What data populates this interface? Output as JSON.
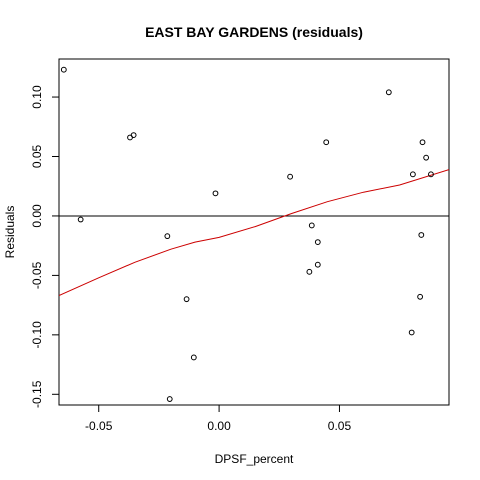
{
  "chart_data": {
    "type": "scatter",
    "title": "EAST BAY GARDENS (residuals)",
    "xlabel": "DPSF_percent",
    "ylabel": "Residuals",
    "xlim": [
      -0.0665,
      0.0955
    ],
    "ylim": [
      -0.159,
      0.132
    ],
    "x_ticks": [
      -0.05,
      0.0,
      0.05
    ],
    "x_tick_labels": [
      "-0.05",
      "0.00",
      "0.05"
    ],
    "y_ticks": [
      -0.15,
      -0.1,
      -0.05,
      0.0,
      0.05,
      0.1
    ],
    "y_tick_labels": [
      "-0.15",
      "-0.10",
      "-0.05",
      "0.00",
      "0.05",
      "0.10"
    ],
    "grid": false,
    "reference_line_y": 0.0,
    "colors": {
      "points": "#000000",
      "smooth": "#cc0000",
      "axes": "#000000"
    },
    "points": [
      {
        "x": -0.0645,
        "y": 0.123
      },
      {
        "x": -0.0575,
        "y": -0.003
      },
      {
        "x": -0.037,
        "y": 0.066
      },
      {
        "x": -0.0355,
        "y": 0.068
      },
      {
        "x": -0.0215,
        "y": -0.017
      },
      {
        "x": -0.0205,
        "y": -0.154
      },
      {
        "x": -0.0135,
        "y": -0.07
      },
      {
        "x": -0.0105,
        "y": -0.119
      },
      {
        "x": -0.0015,
        "y": 0.019
      },
      {
        "x": 0.0295,
        "y": 0.033
      },
      {
        "x": 0.0375,
        "y": -0.047
      },
      {
        "x": 0.0385,
        "y": -0.008
      },
      {
        "x": 0.041,
        "y": -0.022
      },
      {
        "x": 0.041,
        "y": -0.041
      },
      {
        "x": 0.0445,
        "y": 0.062
      },
      {
        "x": 0.0705,
        "y": 0.104
      },
      {
        "x": 0.08,
        "y": -0.098
      },
      {
        "x": 0.0805,
        "y": 0.035
      },
      {
        "x": 0.0835,
        "y": -0.068
      },
      {
        "x": 0.084,
        "y": -0.016
      },
      {
        "x": 0.0845,
        "y": 0.062
      },
      {
        "x": 0.086,
        "y": 0.049
      },
      {
        "x": 0.088,
        "y": 0.035
      }
    ],
    "smooth_line": [
      {
        "x": -0.0665,
        "y": -0.067
      },
      {
        "x": -0.05,
        "y": -0.052
      },
      {
        "x": -0.035,
        "y": -0.039
      },
      {
        "x": -0.02,
        "y": -0.028
      },
      {
        "x": -0.01,
        "y": -0.022
      },
      {
        "x": 0.0,
        "y": -0.018
      },
      {
        "x": 0.015,
        "y": -0.009
      },
      {
        "x": 0.03,
        "y": 0.002
      },
      {
        "x": 0.045,
        "y": 0.012
      },
      {
        "x": 0.06,
        "y": 0.02
      },
      {
        "x": 0.075,
        "y": 0.026
      },
      {
        "x": 0.0955,
        "y": 0.039
      }
    ]
  }
}
